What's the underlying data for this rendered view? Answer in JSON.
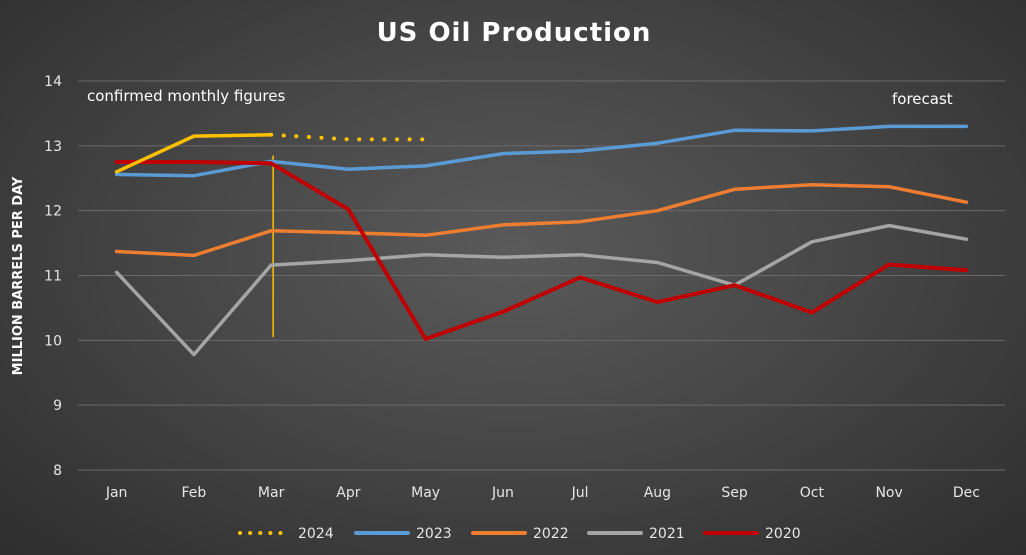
{
  "chart_data": {
    "type": "line",
    "title": "US Oil Production",
    "ylabel": "MILLION BARRELS PER DAY",
    "xlabel": "",
    "categories": [
      "Jan",
      "Feb",
      "Mar",
      "Apr",
      "May",
      "Jun",
      "Jul",
      "Aug",
      "Sep",
      "Oct",
      "Nov",
      "Dec"
    ],
    "ylim": [
      8,
      14
    ],
    "yticks": [
      8,
      9,
      10,
      11,
      12,
      13,
      14
    ],
    "grid": true,
    "legend_position": "bottom",
    "series": [
      {
        "name": "2024",
        "color": "#FFC000",
        "values": [
          12.6,
          13.15,
          13.17,
          null,
          null,
          null,
          null,
          null,
          null,
          null,
          null,
          null
        ],
        "forecast_values": [
          null,
          null,
          13.17,
          13.1,
          13.1,
          null,
          null,
          null,
          null,
          null,
          null,
          null
        ],
        "legend_style": "dotted"
      },
      {
        "name": "2023",
        "color": "#5B9BD5",
        "values": [
          12.56,
          12.54,
          12.76,
          12.64,
          12.69,
          12.88,
          12.92,
          13.04,
          13.24,
          13.23,
          13.3,
          13.3
        ]
      },
      {
        "name": "2022",
        "color": "#ED7D31",
        "values": [
          11.37,
          11.31,
          11.69,
          11.66,
          11.62,
          11.78,
          11.83,
          12.0,
          12.33,
          12.4,
          12.37,
          12.13
        ]
      },
      {
        "name": "2021",
        "color": "#A5A5A5",
        "values": [
          11.05,
          9.78,
          11.16,
          11.23,
          11.32,
          11.28,
          11.32,
          11.2,
          10.85,
          11.52,
          11.77,
          11.56
        ]
      },
      {
        "name": "2020",
        "color": "#C00000",
        "values": [
          12.75,
          12.75,
          12.73,
          12.02,
          10.02,
          10.44,
          10.97,
          10.59,
          10.85,
          10.43,
          11.17,
          11.08
        ]
      }
    ],
    "annotations": {
      "confirmed": "confirmed monthly figures",
      "forecast": "forecast"
    },
    "marker_line": {
      "category": "Mar",
      "y_range": [
        10.05,
        12.85
      ],
      "color": "#FFC000"
    }
  }
}
